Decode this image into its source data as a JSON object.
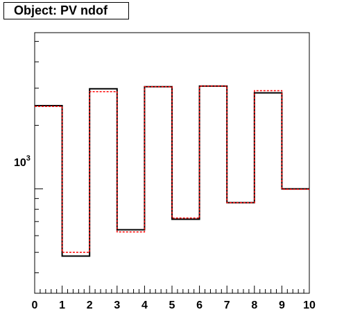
{
  "chart_data": {
    "type": "histogram",
    "title": "Object: PV ndof",
    "x": {
      "range": [
        0,
        10
      ],
      "tick_labels": [
        "0",
        "1",
        "2",
        "3",
        "4",
        "5",
        "6",
        "7",
        "8",
        "9",
        "10"
      ],
      "bin_edges": [
        0,
        1,
        2,
        3,
        4,
        5,
        6,
        7,
        8,
        9,
        10
      ]
    },
    "y": {
      "scale": "log",
      "range": [
        320,
        5500
      ],
      "tick_label": {
        "base": "10",
        "exponent": "3"
      }
    },
    "series": [
      {
        "color": "#000000",
        "line": "solid",
        "values": [
          2480,
          480,
          2980,
          640,
          3050,
          718,
          3070,
          860,
          2850,
          1000
        ]
      },
      {
        "color": "#ff0000",
        "line": "dashed",
        "values": [
          2460,
          500,
          2890,
          625,
          3050,
          727,
          3070,
          860,
          2920,
          995
        ]
      }
    ]
  }
}
